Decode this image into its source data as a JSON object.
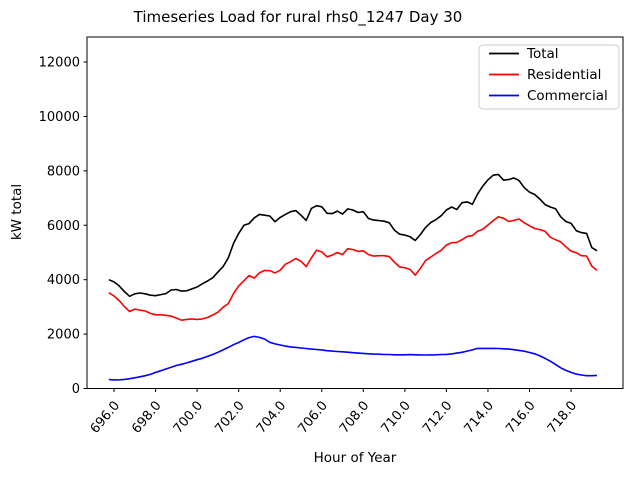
{
  "chart_data": {
    "type": "line",
    "title": "Timeseries Load for rural rhs0_1247  Day 30",
    "xlabel": "Hour of Year",
    "ylabel": "kW total",
    "legend_position": "upper right",
    "grid": false,
    "xlim": [
      694.7,
      720.5
    ],
    "ylim": [
      0,
      12920
    ],
    "x_tick_values": [
      696,
      698,
      700,
      702,
      704,
      706,
      708,
      710,
      712,
      714,
      716,
      718
    ],
    "x_tick_labels": [
      "696.0",
      "698.0",
      "700.0",
      "702.0",
      "704.0",
      "706.0",
      "708.0",
      "710.0",
      "712.0",
      "714.0",
      "716.0",
      "718.0"
    ],
    "y_tick_values": [
      0,
      2000,
      4000,
      6000,
      8000,
      10000,
      12000
    ],
    "y_tick_labels": [
      "0",
      "2000",
      "4000",
      "6000",
      "8000",
      "10000",
      "12000"
    ],
    "x": [
      695.75,
      696,
      696.25,
      696.5,
      696.75,
      697,
      697.25,
      697.5,
      697.75,
      698,
      698.25,
      698.5,
      698.75,
      699,
      699.25,
      699.5,
      699.75,
      700,
      700.25,
      700.5,
      700.75,
      701,
      701.25,
      701.5,
      701.75,
      702,
      702.25,
      702.5,
      702.75,
      703,
      703.25,
      703.5,
      703.75,
      704,
      704.25,
      704.5,
      704.75,
      705,
      705.25,
      705.5,
      705.75,
      706,
      706.25,
      706.5,
      706.75,
      707,
      707.25,
      707.5,
      707.75,
      708,
      708.25,
      708.5,
      708.75,
      709,
      709.25,
      709.5,
      709.75,
      710,
      710.25,
      710.5,
      710.75,
      711,
      711.25,
      711.5,
      711.75,
      712,
      712.25,
      712.5,
      712.75,
      713,
      713.25,
      713.5,
      713.75,
      714,
      714.25,
      714.5,
      714.75,
      715,
      715.25,
      715.5,
      715.75,
      716,
      716.25,
      716.5,
      716.75,
      717,
      717.25,
      717.5,
      717.75,
      718,
      718.25,
      718.5,
      718.75,
      719,
      719.25
    ],
    "series": [
      {
        "name": "Total",
        "color": "#000000",
        "values": [
          4000,
          3920,
          3770,
          3560,
          3390,
          3480,
          3510,
          3480,
          3430,
          3410,
          3450,
          3490,
          3620,
          3640,
          3580,
          3590,
          3660,
          3730,
          3850,
          3950,
          4070,
          4280,
          4480,
          4800,
          5330,
          5700,
          6000,
          6060,
          6270,
          6400,
          6370,
          6340,
          6130,
          6290,
          6400,
          6500,
          6540,
          6370,
          6180,
          6620,
          6720,
          6680,
          6440,
          6430,
          6520,
          6410,
          6600,
          6560,
          6470,
          6500,
          6250,
          6190,
          6170,
          6150,
          6090,
          5820,
          5670,
          5640,
          5575,
          5440,
          5660,
          5920,
          6100,
          6210,
          6350,
          6560,
          6670,
          6580,
          6830,
          6860,
          6770,
          7150,
          7440,
          7670,
          7840,
          7870,
          7660,
          7680,
          7740,
          7640,
          7380,
          7220,
          7130,
          6960,
          6760,
          6670,
          6610,
          6310,
          6140,
          6070,
          5800,
          5730,
          5700,
          5180,
          5060
        ]
      },
      {
        "name": "Residential",
        "color": "#ff0000",
        "values": [
          3520,
          3400,
          3230,
          3010,
          2830,
          2920,
          2880,
          2850,
          2760,
          2710,
          2710,
          2690,
          2660,
          2590,
          2510,
          2540,
          2560,
          2540,
          2560,
          2610,
          2700,
          2805,
          2990,
          3120,
          3490,
          3770,
          3960,
          4150,
          4060,
          4250,
          4340,
          4330,
          4250,
          4350,
          4570,
          4660,
          4780,
          4680,
          4480,
          4800,
          5085,
          5020,
          4840,
          4900,
          5000,
          4920,
          5140,
          5110,
          5040,
          5060,
          4920,
          4865,
          4880,
          4880,
          4850,
          4640,
          4470,
          4440,
          4375,
          4170,
          4420,
          4700,
          4830,
          4965,
          5080,
          5270,
          5360,
          5370,
          5470,
          5590,
          5620,
          5780,
          5850,
          6010,
          6170,
          6310,
          6260,
          6140,
          6180,
          6230,
          6090,
          5980,
          5880,
          5840,
          5780,
          5560,
          5470,
          5390,
          5210,
          5050,
          4990,
          4880,
          4870,
          4500,
          4350
        ]
      },
      {
        "name": "Commercial",
        "color": "#0000ff",
        "values": [
          330,
          315,
          320,
          335,
          360,
          395,
          430,
          470,
          520,
          590,
          650,
          715,
          780,
          845,
          890,
          940,
          1000,
          1060,
          1110,
          1180,
          1250,
          1330,
          1420,
          1510,
          1610,
          1690,
          1790,
          1870,
          1915,
          1880,
          1820,
          1700,
          1640,
          1600,
          1560,
          1530,
          1510,
          1490,
          1470,
          1450,
          1435,
          1420,
          1390,
          1375,
          1360,
          1350,
          1335,
          1315,
          1300,
          1290,
          1275,
          1265,
          1260,
          1250,
          1250,
          1240,
          1240,
          1240,
          1245,
          1240,
          1235,
          1230,
          1235,
          1240,
          1250,
          1255,
          1270,
          1300,
          1330,
          1375,
          1420,
          1475,
          1475,
          1475,
          1475,
          1470,
          1460,
          1450,
          1425,
          1400,
          1370,
          1325,
          1275,
          1200,
          1105,
          1005,
          885,
          760,
          665,
          590,
          530,
          495,
          470,
          470,
          480
        ]
      }
    ]
  }
}
